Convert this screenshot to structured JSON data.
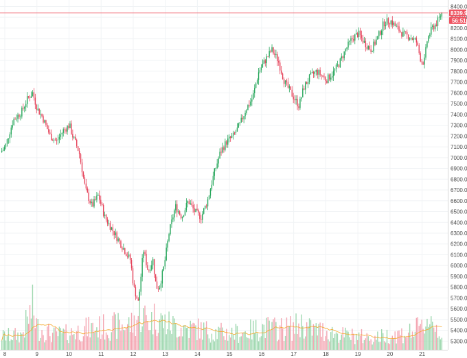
{
  "chart_data": {
    "type": "candlestick",
    "title": "",
    "xlabel": "",
    "ylabel": "",
    "grid": true,
    "ylim": [
      5220,
      8460
    ],
    "y_ticks": [
      5300,
      5400,
      5500,
      5600,
      5700,
      5800,
      5900,
      6000,
      6100,
      6200,
      6300,
      6400,
      6500,
      6600,
      6700,
      6800,
      6900,
      7000,
      7100,
      7200,
      7300,
      7400,
      7500,
      7600,
      7700,
      7800,
      7900,
      8000,
      8100,
      8200,
      8300,
      8400
    ],
    "x_ticks": [
      {
        "label": "8",
        "day": 8
      },
      {
        "label": "9",
        "day": 9
      },
      {
        "label": "10",
        "day": 10
      },
      {
        "label": "11",
        "day": 11
      },
      {
        "label": "12",
        "day": 12
      },
      {
        "label": "13",
        "day": 13
      },
      {
        "label": "14",
        "day": 14
      },
      {
        "label": "15",
        "day": 15
      },
      {
        "label": "16",
        "day": 16
      },
      {
        "label": "17",
        "day": 17
      },
      {
        "label": "18",
        "day": 18
      },
      {
        "label": "19",
        "day": 19
      },
      {
        "label": "20",
        "day": 20
      },
      {
        "label": "21",
        "day": 21
      }
    ],
    "x_range": [
      7.85,
      21.8
    ],
    "price_path": {
      "day": [
        7.85,
        8.0,
        8.25,
        8.5,
        8.7,
        8.85,
        9.0,
        9.15,
        9.4,
        9.6,
        9.8,
        10.0,
        10.1,
        10.3,
        10.5,
        10.7,
        10.9,
        11.1,
        11.3,
        11.5,
        11.7,
        11.9,
        12.0,
        12.15,
        12.3,
        12.45,
        12.6,
        12.7,
        12.8,
        12.95,
        13.1,
        13.3,
        13.5,
        13.7,
        13.9,
        14.1,
        14.3,
        14.5,
        14.7,
        14.9,
        15.1,
        15.3,
        15.5,
        15.7,
        15.9,
        16.1,
        16.3,
        16.5,
        16.7,
        16.9,
        17.0,
        17.15,
        17.3,
        17.5,
        17.7,
        17.9,
        18.0,
        18.2,
        18.4,
        18.6,
        18.8,
        19.0,
        19.2,
        19.4,
        19.6,
        19.8,
        20.0,
        20.2,
        20.4,
        20.6,
        20.8,
        20.95,
        21.05,
        21.15,
        21.3,
        21.45,
        21.6
      ],
      "price": [
        7050,
        7100,
        7350,
        7420,
        7550,
        7600,
        7450,
        7380,
        7200,
        7150,
        7250,
        7300,
        7200,
        7050,
        6700,
        6550,
        6650,
        6450,
        6350,
        6250,
        6150,
        6050,
        5800,
        5650,
        6150,
        5950,
        6050,
        5800,
        5800,
        6000,
        6300,
        6550,
        6450,
        6600,
        6500,
        6450,
        6600,
        6850,
        7050,
        7150,
        7200,
        7300,
        7450,
        7550,
        7800,
        7900,
        8000,
        7900,
        7700,
        7600,
        7550,
        7480,
        7650,
        7750,
        7800,
        7750,
        7720,
        7780,
        7870,
        8000,
        8100,
        8150,
        8060,
        8000,
        8110,
        8250,
        8270,
        8200,
        8140,
        8120,
        8080,
        7900,
        7880,
        8100,
        8200,
        8250,
        8340
      ]
    },
    "volume_path": {
      "day": [
        7.85,
        8.5,
        8.85,
        9.0,
        9.5,
        10.0,
        10.5,
        11.0,
        11.5,
        12.0,
        12.2,
        12.5,
        12.7,
        13.0,
        13.5,
        14.0,
        14.5,
        15.0,
        15.5,
        16.0,
        16.5,
        17.0,
        17.2,
        17.5,
        18.0,
        18.5,
        19.0,
        19.5,
        20.0,
        20.5,
        21.0,
        21.2,
        21.6
      ],
      "volume": [
        0.18,
        0.2,
        0.55,
        0.3,
        0.2,
        0.22,
        0.28,
        0.3,
        0.32,
        0.35,
        0.5,
        0.38,
        0.45,
        0.35,
        0.3,
        0.28,
        0.24,
        0.22,
        0.24,
        0.3,
        0.28,
        0.3,
        0.35,
        0.28,
        0.25,
        0.2,
        0.18,
        0.16,
        0.2,
        0.22,
        0.3,
        0.45,
        0.2
      ]
    },
    "moving_average_color": "#f5a623",
    "colors": {
      "up": "#26a65b",
      "down": "#e5435a",
      "up_volume": "#9fd8b0",
      "down_volume": "#f4a6b2"
    },
    "last_price": {
      "value": 8339.9,
      "label": "8339.9",
      "countdown": "56:51",
      "line_color": "#ef5461"
    }
  }
}
